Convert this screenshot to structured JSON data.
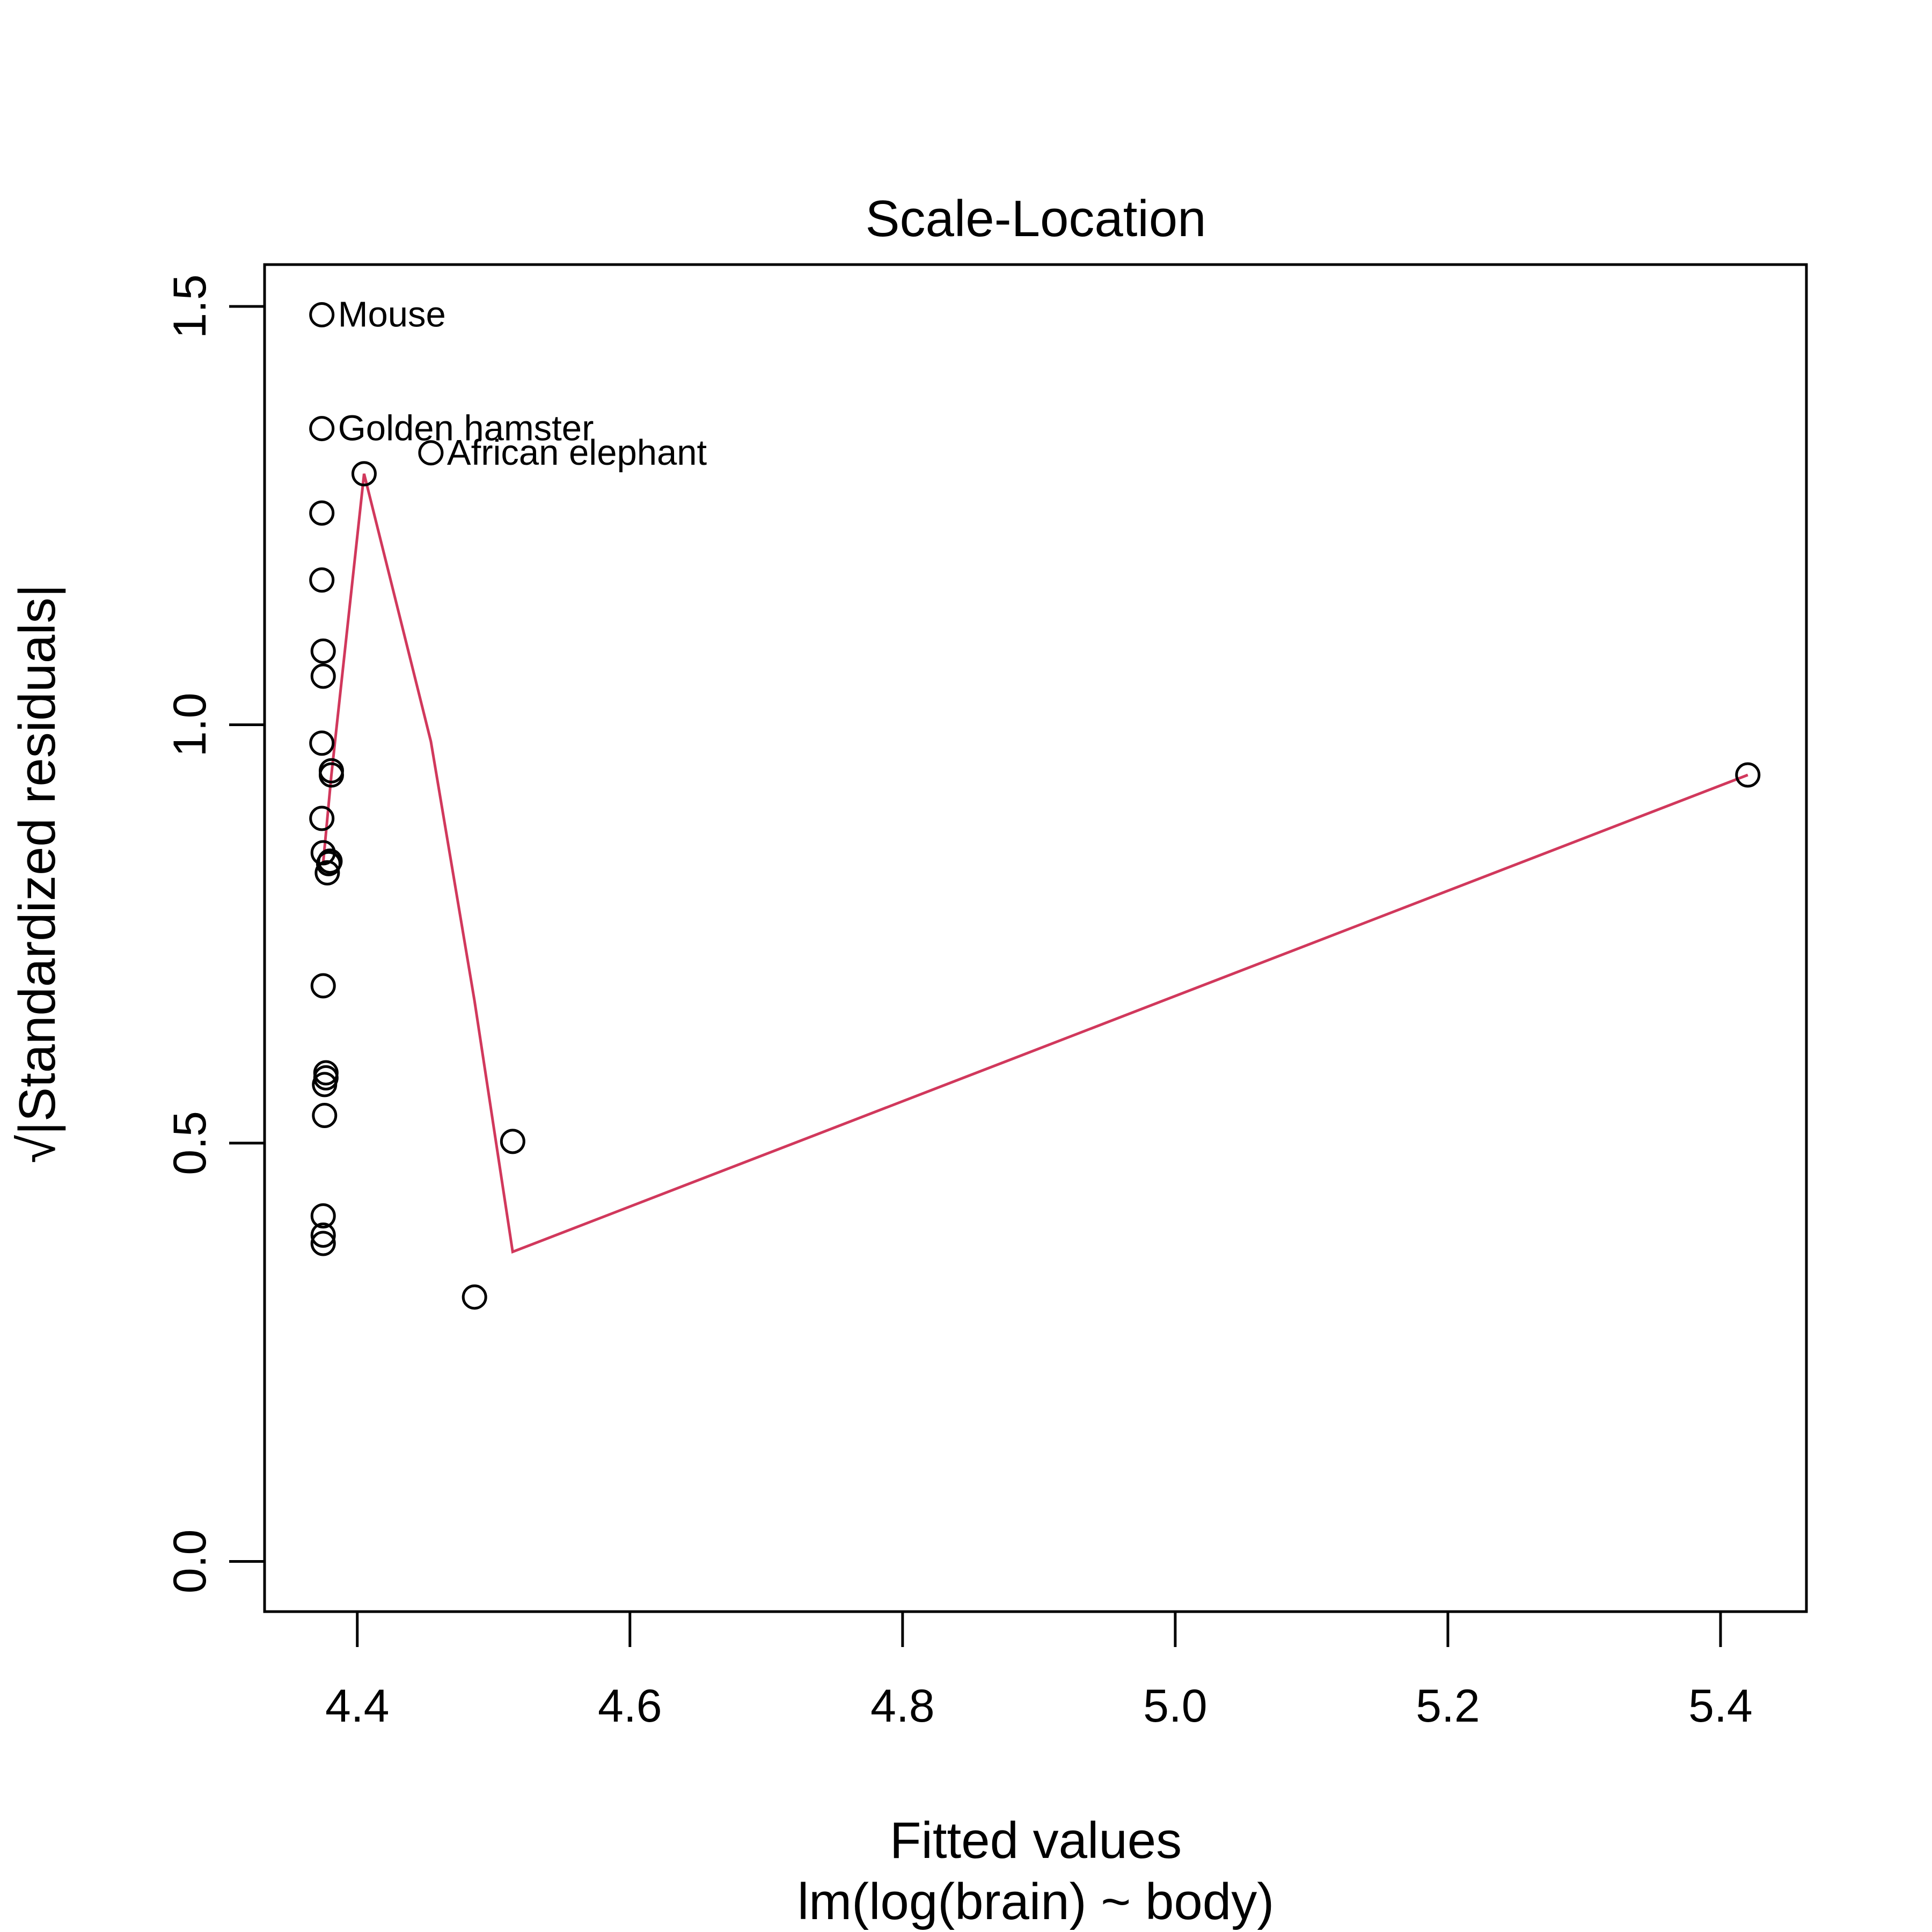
{
  "chart_data": {
    "type": "scatter",
    "title": "Scale-Location",
    "xlabel": "Fitted values",
    "sublabel": "lm(log(brain) ~ body)",
    "ylabel_radical": "√",
    "ylabel": "|Standardized residuals|",
    "xlim": [
      4.332,
      5.463
    ],
    "ylim": [
      -0.06,
      1.55
    ],
    "x_ticks": [
      4.4,
      4.6,
      4.8,
      5.0,
      5.2,
      5.4
    ],
    "x_tick_labels": [
      "4.4",
      "4.6",
      "4.8",
      "5.0",
      "5.2",
      "5.4"
    ],
    "y_ticks": [
      0.0,
      0.5,
      1.0,
      1.5
    ],
    "y_tick_labels": [
      "0.0",
      "0.5",
      "1.0",
      "1.5"
    ],
    "grid": false,
    "colors": {
      "points": "#000000",
      "smooth_line": "#D1385C",
      "frame": "#000000"
    },
    "points": [
      {
        "x": 4.374,
        "y": 1.49,
        "label": "Mouse"
      },
      {
        "x": 4.374,
        "y": 1.354,
        "label": "Golden hamster"
      },
      {
        "x": 4.454,
        "y": 1.325,
        "label": "African elephant"
      },
      {
        "x": 4.405,
        "y": 1.3
      },
      {
        "x": 4.374,
        "y": 1.253
      },
      {
        "x": 4.374,
        "y": 1.173
      },
      {
        "x": 4.375,
        "y": 1.088
      },
      {
        "x": 4.375,
        "y": 1.058
      },
      {
        "x": 4.374,
        "y": 0.978
      },
      {
        "x": 4.381,
        "y": 0.945
      },
      {
        "x": 4.381,
        "y": 0.94
      },
      {
        "x": 4.374,
        "y": 0.888
      },
      {
        "x": 4.375,
        "y": 0.847
      },
      {
        "x": 4.38,
        "y": 0.837
      },
      {
        "x": 4.379,
        "y": 0.834
      },
      {
        "x": 4.378,
        "y": 0.823
      },
      {
        "x": 4.375,
        "y": 0.688
      },
      {
        "x": 4.377,
        "y": 0.584
      },
      {
        "x": 4.377,
        "y": 0.578
      },
      {
        "x": 4.376,
        "y": 0.57
      },
      {
        "x": 4.376,
        "y": 0.533
      },
      {
        "x": 4.514,
        "y": 0.502
      },
      {
        "x": 4.375,
        "y": 0.413
      },
      {
        "x": 4.375,
        "y": 0.39
      },
      {
        "x": 4.375,
        "y": 0.38
      },
      {
        "x": 4.486,
        "y": 0.316
      },
      {
        "x": 5.42,
        "y": 0.94
      }
    ],
    "smooth_line": [
      {
        "x": 4.375,
        "y": 0.835
      },
      {
        "x": 4.381,
        "y": 0.94
      },
      {
        "x": 4.405,
        "y": 1.3
      },
      {
        "x": 4.454,
        "y": 0.98
      },
      {
        "x": 4.486,
        "y": 0.67
      },
      {
        "x": 4.514,
        "y": 0.37
      },
      {
        "x": 5.42,
        "y": 0.94
      }
    ]
  }
}
